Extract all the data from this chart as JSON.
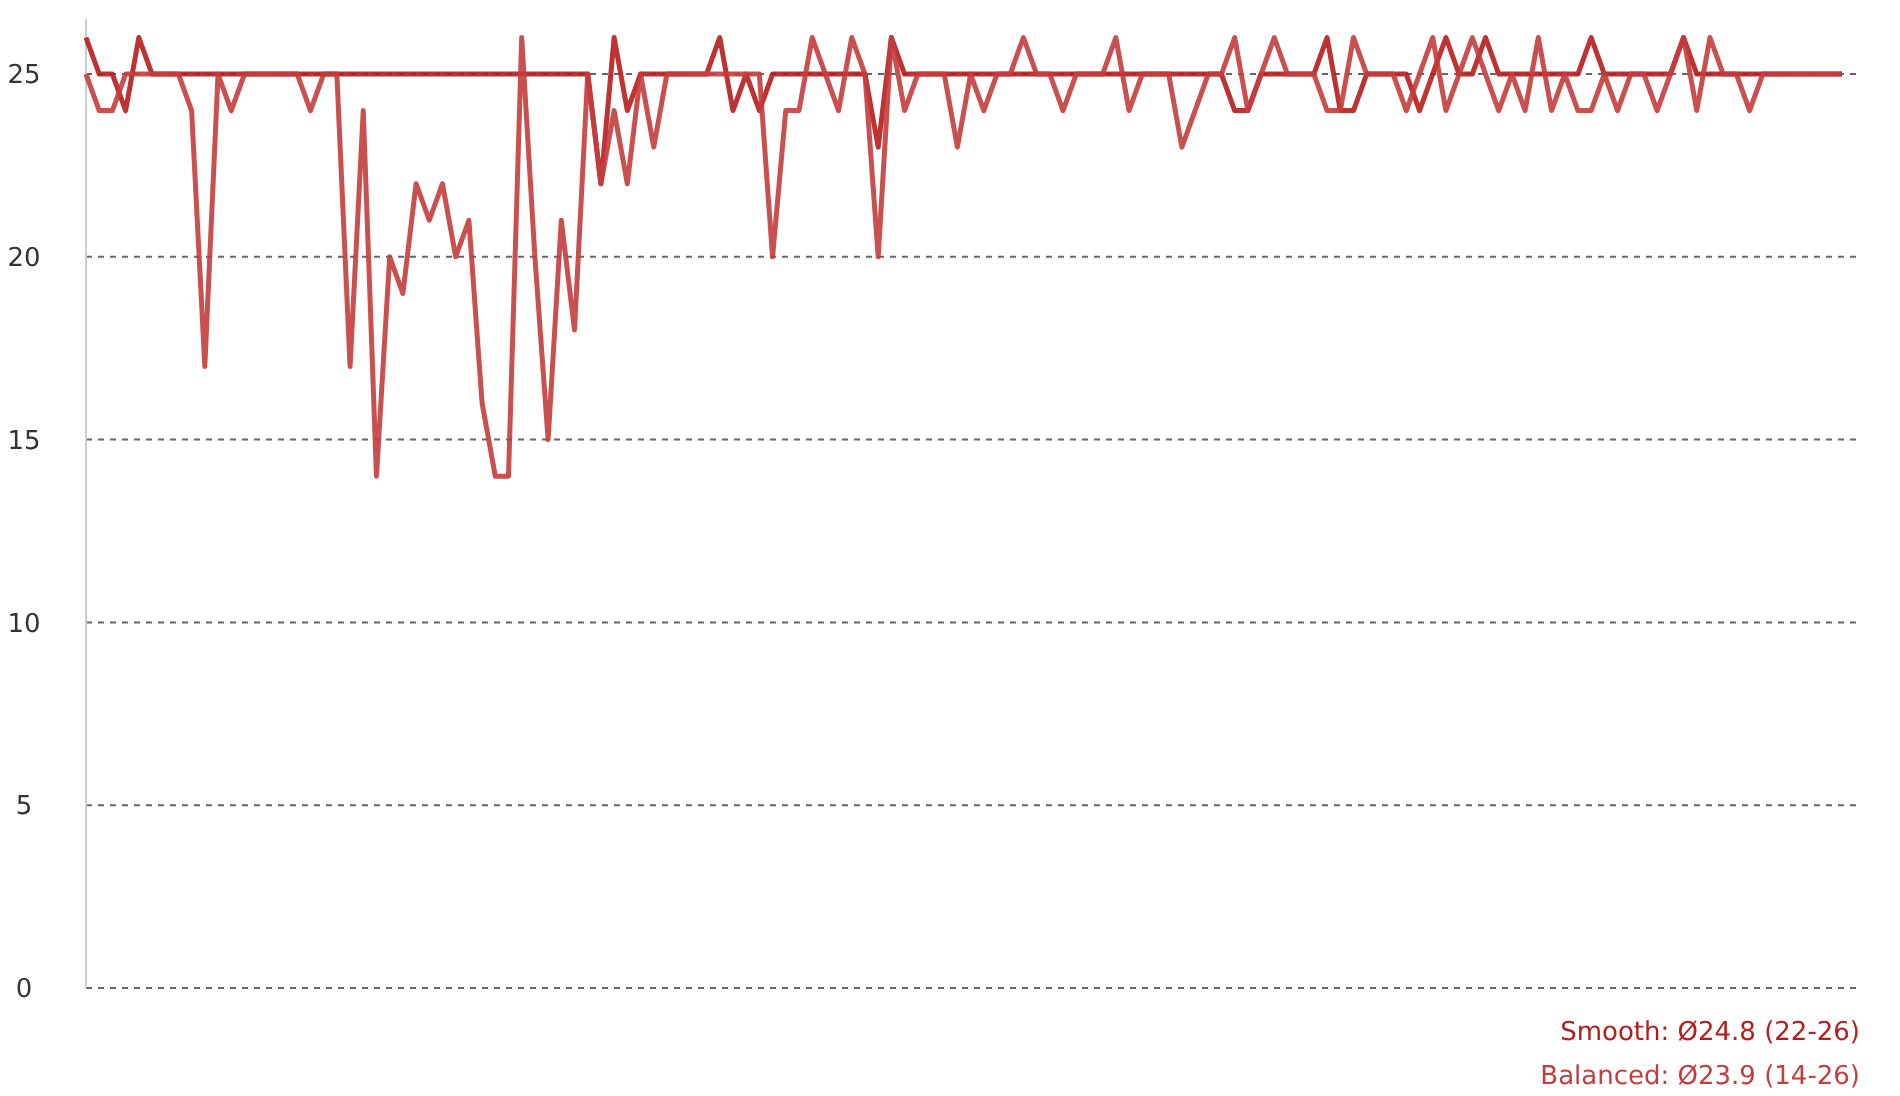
{
  "chart_data": {
    "type": "line",
    "categories": [
      null,
      null,
      null,
      null,
      null,
      null,
      null,
      null,
      null,
      null,
      null,
      null,
      null,
      null,
      null,
      null,
      null,
      null,
      null,
      null,
      null,
      null,
      null,
      null,
      null,
      null,
      null,
      null,
      null,
      null,
      null,
      null,
      null,
      null,
      null,
      null,
      null,
      null,
      null,
      null,
      null,
      null,
      null,
      null,
      null,
      null,
      null,
      null,
      null,
      null,
      null,
      null,
      null,
      null,
      null,
      null,
      null,
      null,
      null,
      null,
      null,
      null,
      null,
      null,
      null,
      null,
      null,
      null,
      null,
      null,
      null,
      null,
      null,
      null,
      null,
      null,
      null,
      null,
      null,
      null,
      null,
      null,
      null,
      null,
      null,
      null,
      null,
      null,
      null,
      null,
      null,
      null,
      null,
      null,
      null,
      null,
      null,
      null,
      null,
      null,
      null,
      null,
      null,
      null,
      null,
      null,
      null,
      null,
      null,
      null,
      null,
      null,
      null,
      null,
      null,
      null,
      null,
      null,
      null,
      null,
      null,
      null,
      null,
      null,
      null,
      null,
      null,
      null,
      null,
      null,
      null,
      null,
      null,
      null
    ],
    "series": [
      {
        "name": "Smooth: Ø24.8 (22-26)",
        "color": "#b71c1c",
        "values": [
          26,
          25,
          25,
          24,
          26,
          25,
          25,
          25,
          25,
          25,
          25,
          25,
          25,
          25,
          25,
          25,
          25,
          25,
          25,
          25,
          25,
          25,
          25,
          25,
          25,
          25,
          25,
          25,
          25,
          25,
          25,
          25,
          25,
          25,
          25,
          25,
          25,
          25,
          25,
          22,
          26,
          24,
          25,
          25,
          25,
          25,
          25,
          25,
          26,
          24,
          25,
          24,
          25,
          25,
          25,
          25,
          25,
          25,
          25,
          25,
          23,
          26,
          25,
          25,
          25,
          25,
          25,
          25,
          25,
          25,
          25,
          25,
          25,
          25,
          25,
          25,
          25,
          25,
          25,
          25,
          25,
          25,
          25,
          25,
          25,
          25,
          25,
          24,
          24,
          25,
          25,
          25,
          25,
          25,
          26,
          24,
          24,
          25,
          25,
          25,
          25,
          24,
          25,
          26,
          25,
          25,
          26,
          25,
          25,
          25,
          25,
          25,
          25,
          25,
          26,
          25,
          25,
          25,
          25,
          25,
          25,
          26,
          25,
          25,
          25,
          25,
          25,
          25,
          25,
          25,
          25,
          25,
          25,
          25
        ]
      },
      {
        "name": "Balanced: Ø23.9 (14-26)",
        "color": "#c43c3c",
        "values": [
          25,
          24,
          24,
          25,
          25,
          25,
          25,
          25,
          24,
          17,
          25,
          24,
          25,
          25,
          25,
          25,
          25,
          24,
          25,
          25,
          17,
          24,
          14,
          20,
          19,
          22,
          21,
          22,
          20,
          21,
          16,
          14,
          14,
          26,
          20,
          15,
          21,
          18,
          25,
          22,
          24,
          22,
          25,
          23,
          25,
          25,
          25,
          25,
          25,
          25,
          25,
          25,
          20,
          24,
          24,
          26,
          25,
          24,
          26,
          25,
          20,
          26,
          24,
          25,
          25,
          25,
          23,
          25,
          24,
          25,
          25,
          26,
          25,
          25,
          24,
          25,
          25,
          25,
          26,
          24,
          25,
          25,
          25,
          23,
          24,
          25,
          25,
          26,
          24,
          25,
          26,
          25,
          25,
          25,
          24,
          24,
          26,
          25,
          25,
          25,
          24,
          25,
          26,
          24,
          25,
          26,
          25,
          24,
          25,
          24,
          26,
          24,
          25,
          24,
          24,
          25,
          24,
          25,
          25,
          24,
          25,
          26,
          24,
          26,
          25,
          25,
          24,
          25,
          25,
          25,
          25,
          25,
          25,
          25
        ]
      }
    ],
    "ylim": [
      0,
      26.5
    ],
    "yticks": [
      0,
      5,
      10,
      15,
      20,
      25
    ],
    "grid": "y",
    "legend": "bottom right",
    "tick_labels": "y",
    "marker": "none",
    "line_style": "solid"
  }
}
